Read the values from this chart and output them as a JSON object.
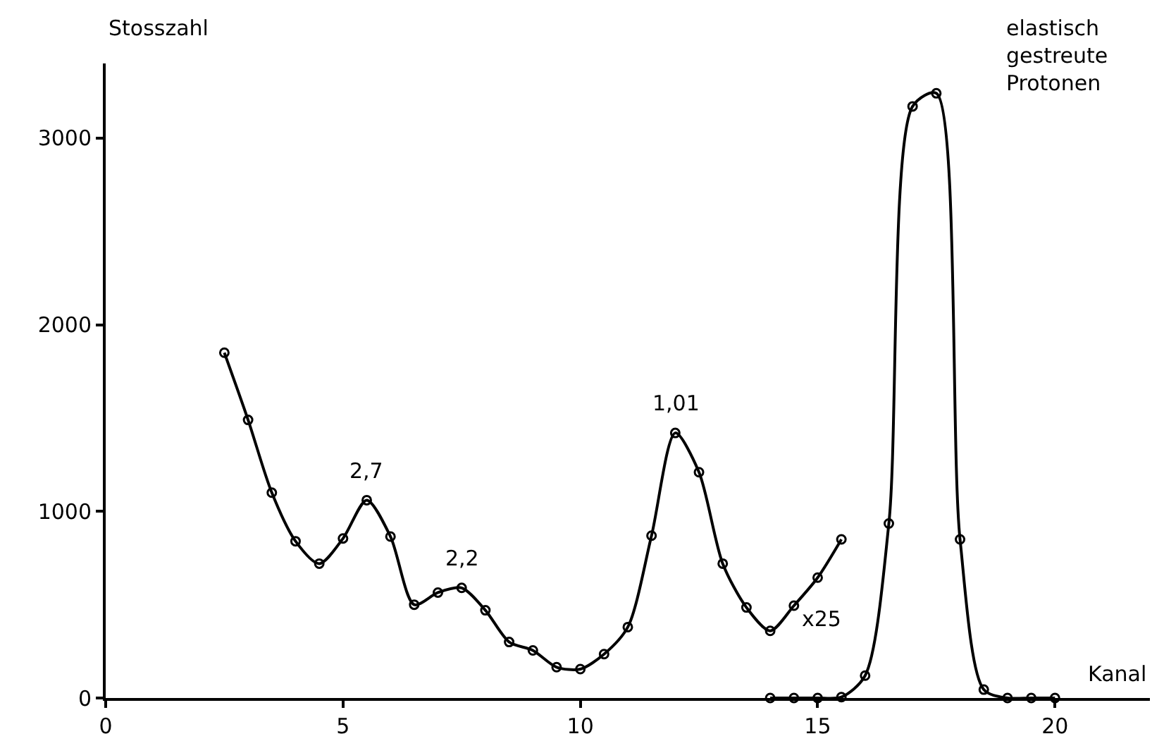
{
  "chart_data": {
    "type": "line",
    "xlabel": "Kanal",
    "ylabel": "Stosszahl",
    "xlim": [
      0,
      22
    ],
    "ylim": [
      0,
      3400
    ],
    "xticks": [
      0,
      5,
      10,
      15,
      20
    ],
    "yticks": [
      0,
      1000,
      2000,
      3000
    ],
    "marker": "circle",
    "line_style": "solid",
    "series": [
      {
        "color": "#000000",
        "x": [
          2.5,
          3.0,
          3.5,
          4.0,
          4.5,
          5.0,
          5.5,
          6.0,
          6.5,
          7.0,
          7.5,
          8.0,
          8.5,
          9.0,
          9.5,
          10.0,
          10.5,
          11.0,
          11.5,
          12.0,
          12.5,
          13.0,
          13.5,
          14.0,
          14.5,
          15.0,
          15.5
        ],
        "values": [
          1850,
          1490,
          1100,
          840,
          720,
          855,
          1060,
          865,
          500,
          565,
          590,
          470,
          300,
          255,
          165,
          155,
          235,
          380,
          870,
          1420,
          1210,
          720,
          485,
          360,
          495,
          645,
          850
        ]
      },
      {
        "color": "#000000",
        "x": [
          14.0,
          14.5,
          15.0,
          15.5,
          16.0,
          16.5,
          17.0,
          17.5,
          18.0,
          18.5,
          19.0,
          19.5,
          20.0
        ],
        "values": [
          0,
          0,
          0,
          5,
          120,
          935,
          3170,
          3240,
          850,
          45,
          0,
          0,
          0
        ]
      }
    ],
    "annotations": [
      {
        "text": "2,7",
        "x": 5.5,
        "y": 1060
      },
      {
        "text": "2,2",
        "x": 7.5,
        "y": 590
      },
      {
        "text": "1,01",
        "x": 12.0,
        "y": 1420
      },
      "x25",
      "elastisch\ngestreute\nProtonen"
    ]
  }
}
